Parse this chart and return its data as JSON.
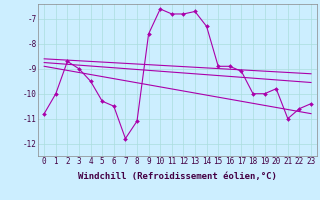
{
  "xlabel": "Windchill (Refroidissement éolien,°C)",
  "ylabel": "",
  "bg_color": "#cceeff",
  "line_color": "#aa00aa",
  "xlim": [
    -0.5,
    23.5
  ],
  "ylim": [
    -12.5,
    -6.4
  ],
  "yticks": [
    -12,
    -11,
    -10,
    -9,
    -8,
    -7
  ],
  "xticks": [
    0,
    1,
    2,
    3,
    4,
    5,
    6,
    7,
    8,
    9,
    10,
    11,
    12,
    13,
    14,
    15,
    16,
    17,
    18,
    19,
    20,
    21,
    22,
    23
  ],
  "series_main": {
    "x": [
      0,
      1,
      2,
      3,
      4,
      5,
      6,
      7,
      8,
      9,
      10,
      11,
      12,
      13,
      14,
      15,
      16,
      17,
      18,
      19,
      20,
      21,
      22,
      23
    ],
    "y": [
      -10.8,
      -10.0,
      -8.7,
      -9.0,
      -9.5,
      -10.3,
      -10.5,
      -11.8,
      -11.1,
      -7.6,
      -6.6,
      -6.8,
      -6.8,
      -6.7,
      -7.3,
      -8.9,
      -8.9,
      -9.1,
      -10.0,
      -10.0,
      -9.8,
      -11.0,
      -10.6,
      -10.4
    ]
  },
  "trend_lines": [
    {
      "x": [
        0,
        23
      ],
      "y": [
        -8.6,
        -9.2
      ]
    },
    {
      "x": [
        0,
        23
      ],
      "y": [
        -8.75,
        -9.55
      ]
    },
    {
      "x": [
        0,
        23
      ],
      "y": [
        -8.9,
        -10.8
      ]
    }
  ],
  "grid_color": "#aadddd",
  "tick_fontsize": 5.5,
  "label_fontsize": 6.5,
  "marker": "D",
  "markersize": 2.0,
  "linewidth": 0.8
}
